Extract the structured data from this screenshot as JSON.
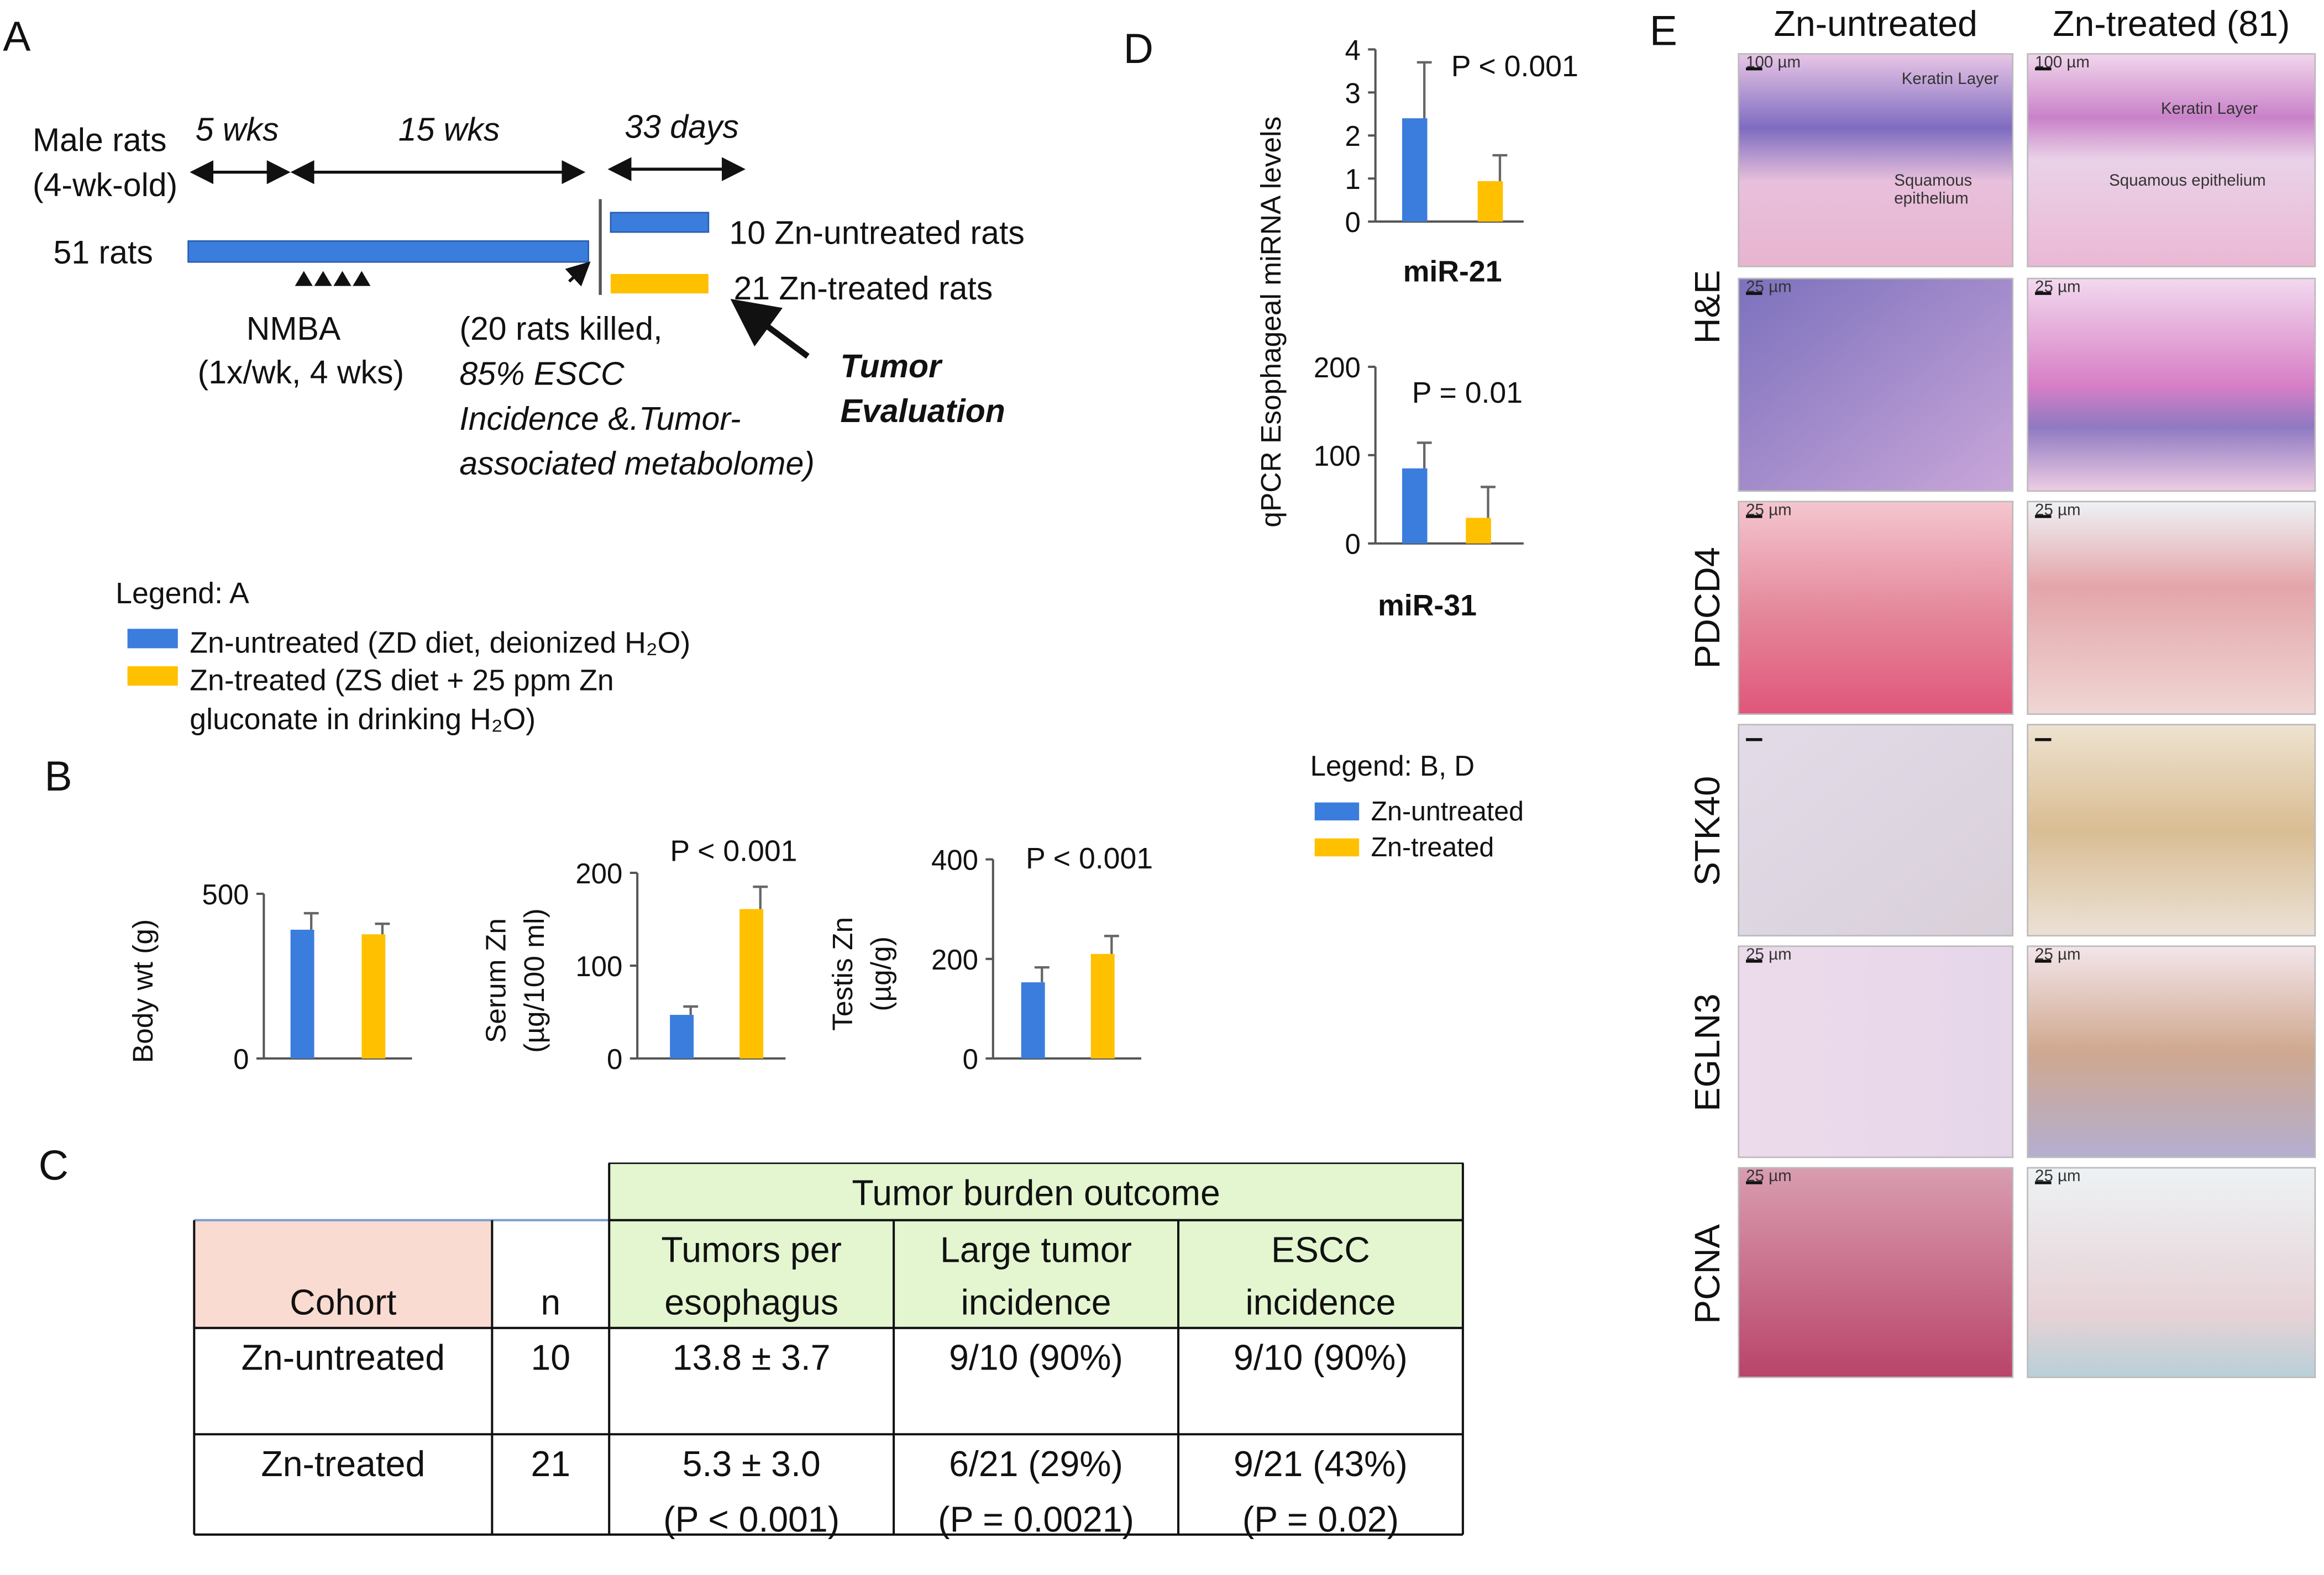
{
  "panel_labels": [
    "A",
    "B",
    "C",
    "D",
    "E"
  ],
  "timeline": {
    "texts": [
      "Male rats",
      "(4-wk-old)",
      "5 wks",
      "15 wks",
      "33 days",
      "51 rats",
      "NMBA",
      "(1x/wk, 4 wks)",
      "(20 rats killed,",
      "85% ESCC",
      "Incidence &.Tumor-",
      "associated metabolome)",
      "10 Zn-untreated rats",
      "21 Zn-treated rats",
      "Tumor",
      "Evaluation"
    ]
  },
  "legend_a": {
    "title": "Legend: A",
    "items": [
      {
        "lines": [
          "Zn-untreated (ZD diet, deionized H₂O)"
        ],
        "color": "#3b7ddd"
      },
      {
        "lines": [
          "Zn-treated (ZS diet + 25 ppm Zn",
          "gluconate in drinking H₂O)"
        ],
        "color": "#ffc000"
      }
    ]
  },
  "chart_data": [
    {
      "type": "bar",
      "ylabel": [
        "Body wt (g)"
      ],
      "values": [
        391,
        377
      ],
      "errors": [
        50,
        32
      ],
      "colors": [
        "#3b7ddd",
        "#ffc000"
      ],
      "ylim": [
        0,
        500
      ],
      "yticks": [
        0,
        500
      ]
    },
    {
      "type": "bar",
      "ylabel": [
        "Serum  Zn",
        "(µg/100 ml)"
      ],
      "values": [
        47,
        161
      ],
      "errors": [
        9,
        24
      ],
      "colors": [
        "#3b7ddd",
        "#ffc000"
      ],
      "ylim": [
        0,
        200
      ],
      "yticks": [
        0,
        100,
        200
      ],
      "annotation": "P < 0.001"
    },
    {
      "type": "bar",
      "ylabel": [
        "Testis Zn",
        "(µg/g)"
      ],
      "values": [
        153,
        210
      ],
      "errors": [
        30,
        36
      ],
      "colors": [
        "#3b7ddd",
        "#ffc000"
      ],
      "ylim": [
        0,
        400
      ],
      "yticks": [
        0,
        200,
        400
      ],
      "annotation": "P < 0.001"
    },
    {
      "type": "bar",
      "xlabel": "miR-21",
      "values": [
        2.4,
        0.94
      ],
      "errors": [
        1.3,
        0.6
      ],
      "colors": [
        "#3b7ddd",
        "#ffc000"
      ],
      "ylim": [
        0,
        4
      ],
      "yticks": [
        0,
        1,
        2,
        3,
        4
      ],
      "annotation": "P < 0.001"
    },
    {
      "type": "bar",
      "xlabel": "miR-31",
      "values": [
        85,
        29
      ],
      "errors": [
        29,
        35
      ],
      "colors": [
        "#3b7ddd",
        "#ffc000"
      ],
      "ylim": [
        0,
        200
      ],
      "yticks": [
        0,
        100,
        200
      ],
      "annotation": "P = 0.01"
    }
  ],
  "panel_d_ylabel": "qPCR Esophageal miRNA  levels",
  "legend_bd": {
    "title": "Legend: B, D",
    "items": [
      {
        "name": "Zn-untreated",
        "color": "#3b7ddd"
      },
      {
        "name": "Zn-treated",
        "color": "#ffc000"
      }
    ]
  },
  "table": {
    "group_header": "Tumor burden outcome",
    "columns": [
      [
        "Cohort"
      ],
      [
        "n"
      ],
      [
        "Tumors per",
        "esophagus"
      ],
      [
        "Large tumor",
        "incidence"
      ],
      [
        "ESCC",
        "incidence"
      ]
    ],
    "rows": [
      [
        [
          "Zn-untreated"
        ],
        [
          "10"
        ],
        [
          "13.8 ± 3.7"
        ],
        [
          "9/10 (90%)"
        ],
        [
          "9/10 (90%)"
        ]
      ],
      [
        [
          "Zn-treated"
        ],
        [
          "21"
        ],
        [
          "5.3 ± 3.0",
          "(P < 0.001)"
        ],
        [
          "6/21 (29%)",
          "(P = 0.0021)"
        ],
        [
          "9/21 (43%)",
          "(P = 0.02)"
        ]
      ]
    ]
  },
  "histology": {
    "columns": [
      "Zn-untreated",
      "Zn-treated (81)"
    ],
    "row_labels": [
      "H&E",
      "PDCD4",
      "STK40",
      "EGLN3",
      "PCNA"
    ],
    "images": [
      [
        [
          "100 µm",
          "Keratin Layer",
          "Squamous",
          "epithelium"
        ],
        [
          "100 µm",
          "Keratin Layer",
          "Squamous epithelium"
        ]
      ],
      [
        [
          "25 µm"
        ],
        [
          "25 µm"
        ]
      ],
      [
        [
          "25 µm"
        ],
        [
          "25 µm"
        ]
      ],
      [
        [],
        []
      ],
      [
        [
          "25 µm"
        ],
        [
          "25 µm"
        ]
      ],
      [
        [
          "25 µm"
        ],
        [
          "25 µm"
        ]
      ]
    ]
  }
}
